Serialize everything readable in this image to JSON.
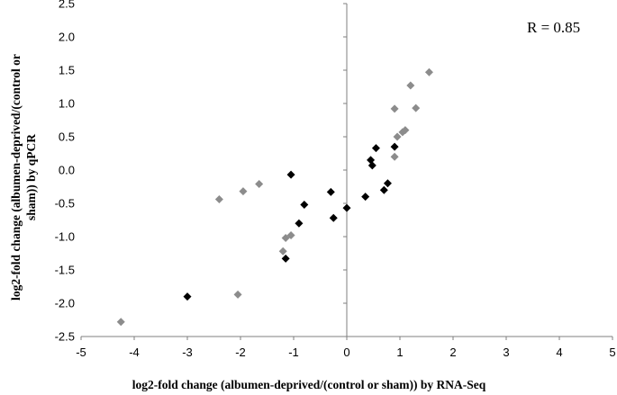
{
  "chart_data": {
    "type": "scatter",
    "xlabel": "log2-fold change (albumen-deprived/(control  or sham))  by RNA-Seq",
    "ylabel_line1": "log2-fold change (albumen-deprived/(control  or",
    "ylabel_line2": "sham))  by qPCR",
    "annotation": "R = 0.85",
    "xlim": [
      -5,
      5
    ],
    "ylim": [
      -2.5,
      2.5
    ],
    "x_ticks": [
      -5,
      -4,
      -3,
      -2,
      -1,
      0,
      1,
      2,
      3,
      4,
      5
    ],
    "y_ticks": [
      2.5,
      2.0,
      1.5,
      1.0,
      0.5,
      0.0,
      -0.5,
      -1.0,
      -1.5,
      -2.0,
      -2.5
    ],
    "x_tick_labels": [
      "-5",
      "-4",
      "-3",
      "-2",
      "-1",
      "0",
      "1",
      "2",
      "3",
      "4",
      "5"
    ],
    "y_tick_labels": [
      "2.5",
      "2.0",
      "1.5",
      "1.0",
      "0.5",
      "0.0",
      "-0.5",
      "-1.0",
      "-1.5",
      "-2.0",
      "-2.5"
    ],
    "grid": false,
    "series": [
      {
        "color": "#8c8c8c",
        "marker": "diamond",
        "points": [
          {
            "x": -4.25,
            "y": -2.28
          },
          {
            "x": -2.05,
            "y": -1.87
          },
          {
            "x": -2.4,
            "y": -0.44
          },
          {
            "x": -1.95,
            "y": -0.32
          },
          {
            "x": -1.65,
            "y": -0.21
          },
          {
            "x": -1.2,
            "y": -1.22
          },
          {
            "x": -1.15,
            "y": -1.02
          },
          {
            "x": -1.05,
            "y": -0.98
          },
          {
            "x": 0.9,
            "y": 0.2
          },
          {
            "x": 0.95,
            "y": 0.5
          },
          {
            "x": 1.05,
            "y": 0.57
          },
          {
            "x": 1.1,
            "y": 0.6
          },
          {
            "x": 0.9,
            "y": 0.92
          },
          {
            "x": 1.3,
            "y": 0.93
          },
          {
            "x": 1.2,
            "y": 1.27
          },
          {
            "x": 1.55,
            "y": 1.47
          }
        ]
      },
      {
        "color": "#000000",
        "marker": "diamond",
        "points": [
          {
            "x": -3.0,
            "y": -1.9
          },
          {
            "x": -1.15,
            "y": -1.33
          },
          {
            "x": -1.05,
            "y": -0.07
          },
          {
            "x": -0.9,
            "y": -0.8
          },
          {
            "x": -0.8,
            "y": -0.52
          },
          {
            "x": -0.3,
            "y": -0.33
          },
          {
            "x": -0.25,
            "y": -0.72
          },
          {
            "x": 0.0,
            "y": -0.57
          },
          {
            "x": 0.35,
            "y": -0.4
          },
          {
            "x": 0.45,
            "y": 0.15
          },
          {
            "x": 0.48,
            "y": 0.07
          },
          {
            "x": 0.55,
            "y": 0.33
          },
          {
            "x": 0.7,
            "y": -0.3
          },
          {
            "x": 0.77,
            "y": -0.2
          },
          {
            "x": 0.9,
            "y": 0.35
          }
        ]
      }
    ]
  }
}
